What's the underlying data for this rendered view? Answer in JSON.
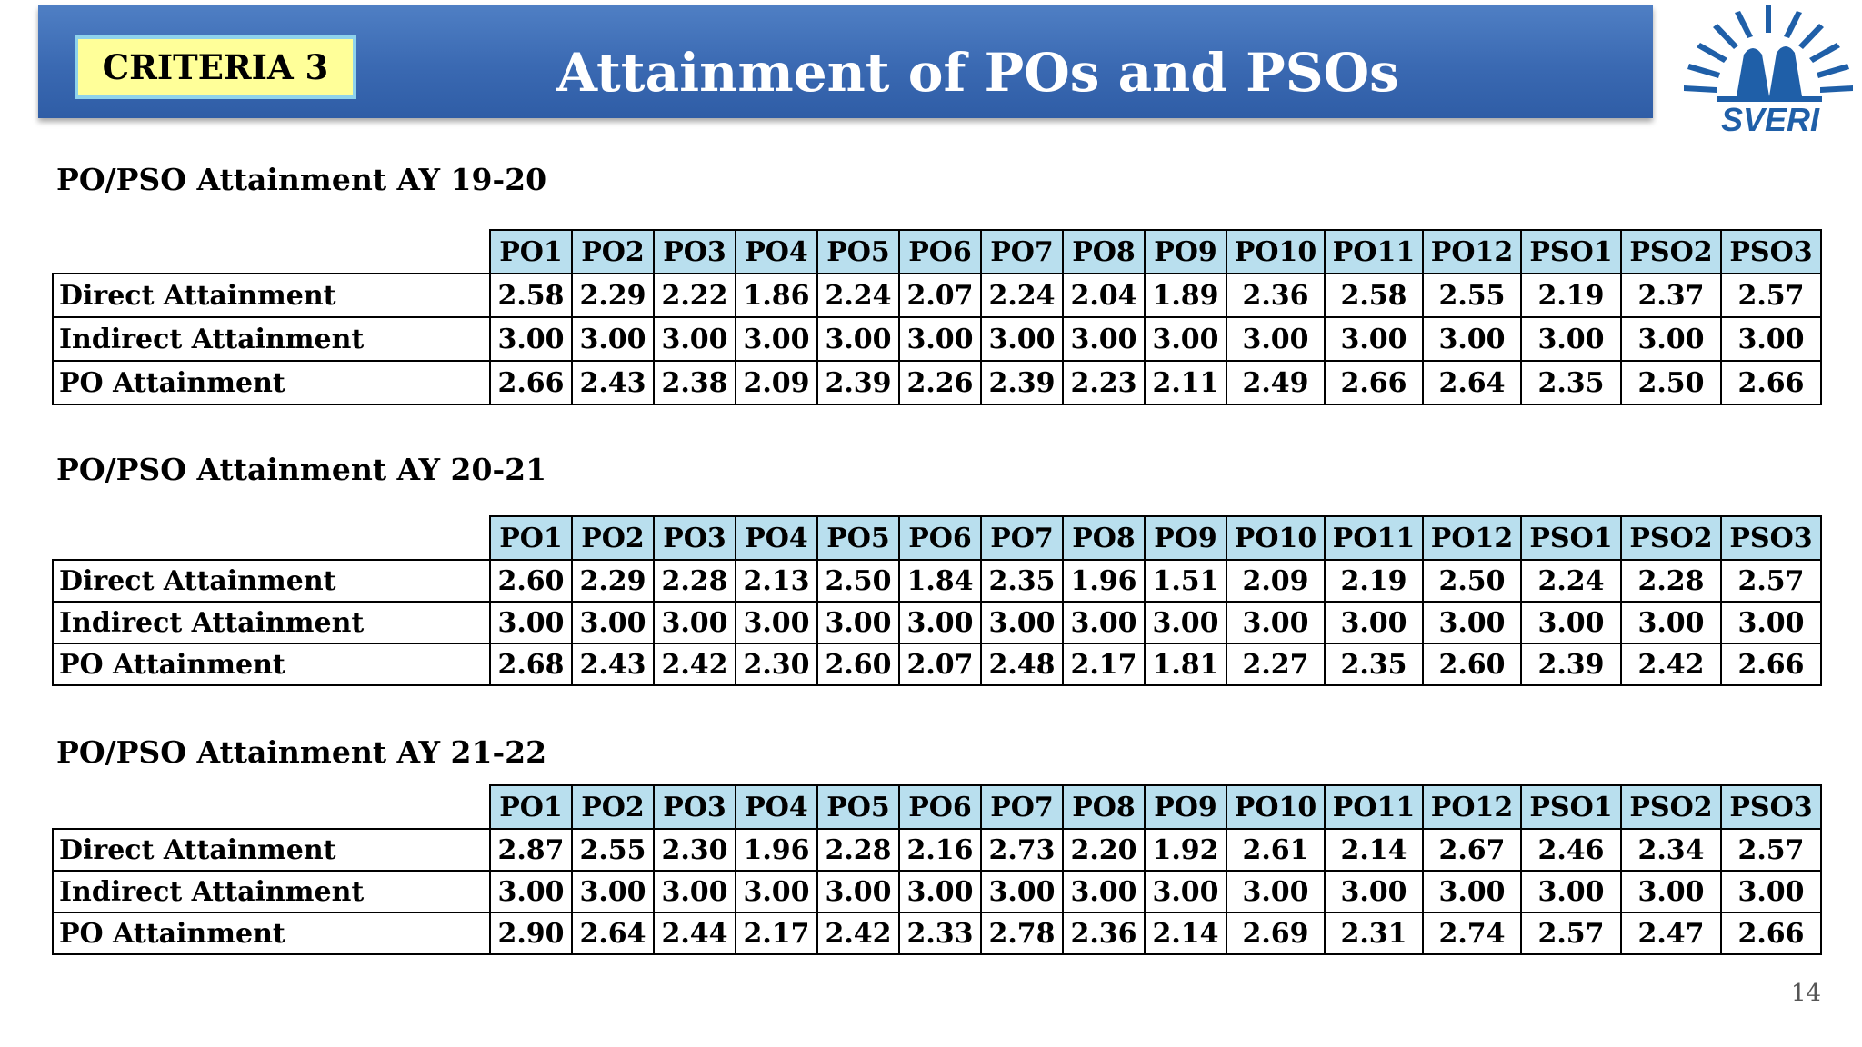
{
  "header": {
    "criteria_label": "CRITERIA 3",
    "title": "Attainment of POs and PSOs",
    "logo_text": "SVERI",
    "bar_color": "#3a69b2",
    "badge_color": "#ffff99"
  },
  "columns": [
    "PO1",
    "PO2",
    "PO3",
    "PO4",
    "PO5",
    "PO6",
    "PO7",
    "PO8",
    "PO9",
    "PO10",
    "PO11",
    "PO12",
    "PSO1",
    "PSO2",
    "PSO3"
  ],
  "sections": [
    {
      "title": "PO/PSO  Attainment AY 19-20",
      "rows": [
        {
          "label": "Direct Attainment",
          "values": [
            "2.58",
            "2.29",
            "2.22",
            "1.86",
            "2.24",
            "2.07",
            "2.24",
            "2.04",
            "1.89",
            "2.36",
            "2.58",
            "2.55",
            "2.19",
            "2.37",
            "2.57"
          ]
        },
        {
          "label": "Indirect Attainment",
          "values": [
            "3.00",
            "3.00",
            "3.00",
            "3.00",
            "3.00",
            "3.00",
            "3.00",
            "3.00",
            "3.00",
            "3.00",
            "3.00",
            "3.00",
            "3.00",
            "3.00",
            "3.00"
          ]
        },
        {
          "label": "PO Attainment",
          "values": [
            "2.66",
            "2.43",
            "2.38",
            "2.09",
            "2.39",
            "2.26",
            "2.39",
            "2.23",
            "2.11",
            "2.49",
            "2.66",
            "2.64",
            "2.35",
            "2.50",
            "2.66"
          ]
        }
      ]
    },
    {
      "title": "PO/PSO  Attainment AY 20-21",
      "rows": [
        {
          "label": "Direct Attainment",
          "values": [
            "2.60",
            "2.29",
            "2.28",
            "2.13",
            "2.50",
            "1.84",
            "2.35",
            "1.96",
            "1.51",
            "2.09",
            "2.19",
            "2.50",
            "2.24",
            "2.28",
            "2.57"
          ]
        },
        {
          "label": "Indirect Attainment",
          "values": [
            "3.00",
            "3.00",
            "3.00",
            "3.00",
            "3.00",
            "3.00",
            "3.00",
            "3.00",
            "3.00",
            "3.00",
            "3.00",
            "3.00",
            "3.00",
            "3.00",
            "3.00"
          ]
        },
        {
          "label": "PO Attainment",
          "values": [
            "2.68",
            "2.43",
            "2.42",
            "2.30",
            "2.60",
            "2.07",
            "2.48",
            "2.17",
            "1.81",
            "2.27",
            "2.35",
            "2.60",
            "2.39",
            "2.42",
            "2.66"
          ]
        }
      ]
    },
    {
      "title": "PO/PSO  Attainment AY 21-22",
      "rows": [
        {
          "label": "Direct Attainment",
          "values": [
            "2.87",
            "2.55",
            "2.30",
            "1.96",
            "2.28",
            "2.16",
            "2.73",
            "2.20",
            "1.92",
            "2.61",
            "2.14",
            "2.67",
            "2.46",
            "2.34",
            "2.57"
          ]
        },
        {
          "label": "Indirect Attainment",
          "values": [
            "3.00",
            "3.00",
            "3.00",
            "3.00",
            "3.00",
            "3.00",
            "3.00",
            "3.00",
            "3.00",
            "3.00",
            "3.00",
            "3.00",
            "3.00",
            "3.00",
            "3.00"
          ]
        },
        {
          "label": "PO Attainment",
          "values": [
            "2.90",
            "2.64",
            "2.44",
            "2.17",
            "2.42",
            "2.33",
            "2.78",
            "2.36",
            "2.14",
            "2.69",
            "2.31",
            "2.74",
            "2.57",
            "2.47",
            "2.66"
          ]
        }
      ]
    }
  ],
  "footer": {
    "page_number": "14"
  }
}
